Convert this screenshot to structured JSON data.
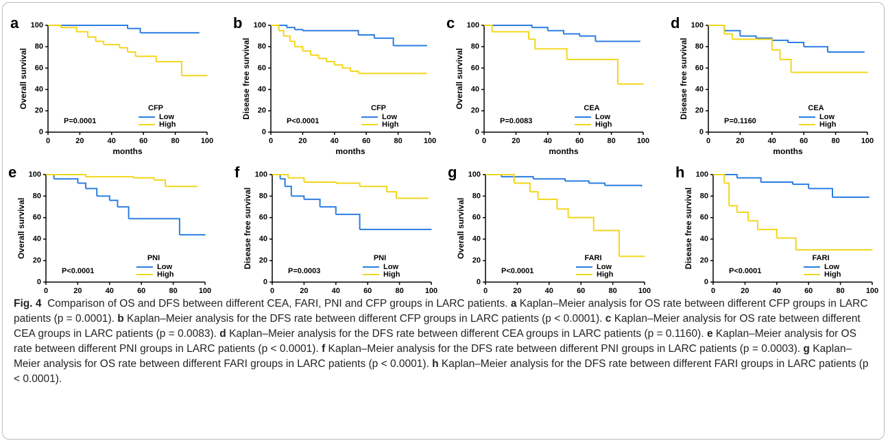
{
  "chart_data": [
    {
      "type": "line",
      "step": true,
      "panel_label": "a",
      "y_label": "Overall survival",
      "x_label": "months",
      "legend_title": "CFP",
      "annotation": "P=0.0001",
      "xlim": [
        0,
        100
      ],
      "xticks": [
        0,
        20,
        40,
        60,
        80,
        100
      ],
      "ylim": [
        0,
        100
      ],
      "yticks": [
        0,
        20,
        40,
        60,
        80,
        100
      ],
      "series": [
        {
          "name": "Low",
          "color": "#2a7de1",
          "x": [
            0,
            50,
            58,
            95
          ],
          "values": [
            100,
            97,
            93,
            93
          ]
        },
        {
          "name": "High",
          "color": "#f2d61c",
          "x": [
            0,
            8,
            18,
            25,
            30,
            35,
            45,
            50,
            55,
            68,
            84,
            100
          ],
          "values": [
            100,
            98,
            94,
            89,
            85,
            82,
            79,
            75,
            71,
            66,
            53,
            53
          ]
        }
      ]
    },
    {
      "type": "line",
      "step": true,
      "panel_label": "b",
      "y_label": "Disease free survival",
      "x_label": "months",
      "legend_title": "CFP",
      "annotation": "P<0.0001",
      "xlim": [
        0,
        100
      ],
      "xticks": [
        0,
        20,
        40,
        60,
        80,
        100
      ],
      "ylim": [
        0,
        100
      ],
      "yticks": [
        0,
        20,
        40,
        60,
        80,
        100
      ],
      "series": [
        {
          "name": "Low",
          "color": "#2a7de1",
          "x": [
            0,
            10,
            15,
            20,
            55,
            65,
            77,
            98
          ],
          "values": [
            100,
            98,
            96,
            95,
            91,
            88,
            81,
            81
          ]
        },
        {
          "name": "High",
          "color": "#f2d61c",
          "x": [
            0,
            5,
            8,
            12,
            15,
            20,
            25,
            30,
            35,
            40,
            45,
            50,
            55,
            98
          ],
          "values": [
            100,
            95,
            90,
            85,
            80,
            76,
            72,
            69,
            66,
            63,
            60,
            57,
            55,
            55
          ]
        }
      ]
    },
    {
      "type": "line",
      "step": true,
      "panel_label": "c",
      "y_label": "Overall survival",
      "x_label": "months",
      "legend_title": "CEA",
      "annotation": "P=0.0083",
      "xlim": [
        0,
        100
      ],
      "xticks": [
        0,
        20,
        40,
        60,
        80,
        100
      ],
      "ylim": [
        0,
        100
      ],
      "yticks": [
        0,
        20,
        40,
        60,
        80,
        100
      ],
      "series": [
        {
          "name": "Low",
          "color": "#2a7de1",
          "x": [
            0,
            30,
            40,
            50,
            60,
            70,
            98
          ],
          "values": [
            100,
            98,
            95,
            92,
            90,
            85,
            85
          ]
        },
        {
          "name": "High",
          "color": "#f2d61c",
          "x": [
            0,
            5,
            28,
            32,
            52,
            84,
            100
          ],
          "values": [
            100,
            94,
            87,
            78,
            68,
            45,
            45
          ]
        }
      ]
    },
    {
      "type": "line",
      "step": true,
      "panel_label": "d",
      "y_label": "Disease free survival",
      "x_label": "months",
      "legend_title": "CEA",
      "annotation": "P=0.1160",
      "xlim": [
        0,
        100
      ],
      "xticks": [
        0,
        20,
        40,
        60,
        80,
        100
      ],
      "ylim": [
        0,
        100
      ],
      "yticks": [
        0,
        20,
        40,
        60,
        80,
        100
      ],
      "series": [
        {
          "name": "Low",
          "color": "#2a7de1",
          "x": [
            0,
            10,
            20,
            30,
            40,
            50,
            60,
            75,
            98
          ],
          "values": [
            100,
            95,
            90,
            88,
            86,
            84,
            80,
            75,
            75
          ]
        },
        {
          "name": "High",
          "color": "#f2d61c",
          "x": [
            0,
            10,
            15,
            40,
            45,
            52,
            100
          ],
          "values": [
            100,
            92,
            87,
            77,
            68,
            56,
            56
          ]
        }
      ]
    },
    {
      "type": "line",
      "step": true,
      "panel_label": "e",
      "y_label": "Overall survival",
      "x_label": "months",
      "legend_title": "PNI",
      "annotation": "P<0.0001",
      "xlim": [
        0,
        100
      ],
      "xticks": [
        0,
        20,
        40,
        60,
        80,
        100
      ],
      "ylim": [
        0,
        100
      ],
      "yticks": [
        0,
        20,
        40,
        60,
        80,
        100
      ],
      "series": [
        {
          "name": "Low",
          "color": "#2a7de1",
          "x": [
            0,
            5,
            20,
            25,
            32,
            40,
            45,
            52,
            84,
            100
          ],
          "values": [
            100,
            96,
            92,
            87,
            80,
            76,
            70,
            59,
            44,
            44
          ]
        },
        {
          "name": "High",
          "color": "#f2d61c",
          "x": [
            0,
            25,
            55,
            68,
            75,
            95
          ],
          "values": [
            100,
            98,
            97,
            95,
            89,
            89
          ]
        }
      ]
    },
    {
      "type": "line",
      "step": true,
      "panel_label": "f",
      "y_label": "Disease free survival",
      "x_label": "months",
      "legend_title": "PNI",
      "annotation": "P=0.0003",
      "xlim": [
        0,
        100
      ],
      "xticks": [
        0,
        20,
        40,
        60,
        80,
        100
      ],
      "ylim": [
        0,
        100
      ],
      "yticks": [
        0,
        20,
        40,
        60,
        80,
        100
      ],
      "series": [
        {
          "name": "Low",
          "color": "#2a7de1",
          "x": [
            0,
            5,
            8,
            12,
            20,
            30,
            40,
            55,
            100
          ],
          "values": [
            100,
            96,
            89,
            80,
            77,
            70,
            63,
            49,
            49
          ]
        },
        {
          "name": "High",
          "color": "#f2d61c",
          "x": [
            0,
            10,
            20,
            40,
            55,
            72,
            78,
            98
          ],
          "values": [
            100,
            97,
            93,
            92,
            89,
            84,
            78,
            78
          ]
        }
      ]
    },
    {
      "type": "line",
      "step": true,
      "panel_label": "g",
      "y_label": "Overall survival",
      "x_label": "months",
      "legend_title": "FARI",
      "annotation": "P<0.0001",
      "xlim": [
        0,
        100
      ],
      "xticks": [
        0,
        20,
        40,
        60,
        80,
        100
      ],
      "ylim": [
        0,
        100
      ],
      "yticks": [
        0,
        20,
        40,
        60,
        80,
        100
      ],
      "series": [
        {
          "name": "Low",
          "color": "#2a7de1",
          "x": [
            0,
            10,
            30,
            50,
            65,
            75,
            98
          ],
          "values": [
            100,
            98,
            96,
            94,
            92,
            90,
            89
          ]
        },
        {
          "name": "High",
          "color": "#f2d61c",
          "x": [
            0,
            18,
            28,
            33,
            45,
            52,
            68,
            84,
            100
          ],
          "values": [
            100,
            92,
            84,
            77,
            68,
            60,
            48,
            24,
            24
          ]
        }
      ]
    },
    {
      "type": "line",
      "step": true,
      "panel_label": "h",
      "y_label": "Disease free survival",
      "x_label": "months",
      "legend_title": "FARI",
      "annotation": "P<0.0001",
      "xlim": [
        0,
        100
      ],
      "xticks": [
        0,
        20,
        40,
        60,
        80,
        100
      ],
      "ylim": [
        0,
        100
      ],
      "yticks": [
        0,
        20,
        40,
        60,
        80,
        100
      ],
      "series": [
        {
          "name": "Low",
          "color": "#2a7de1",
          "x": [
            0,
            15,
            30,
            50,
            60,
            75,
            98
          ],
          "values": [
            100,
            97,
            93,
            91,
            87,
            79,
            79
          ]
        },
        {
          "name": "High",
          "color": "#f2d61c",
          "x": [
            0,
            7,
            10,
            15,
            22,
            28,
            40,
            52,
            100
          ],
          "values": [
            100,
            92,
            71,
            65,
            57,
            49,
            41,
            30,
            30
          ]
        }
      ]
    }
  ],
  "caption": {
    "figure_label": "Fig. 4",
    "text": "Comparison of OS and DFS between different CEA, FARI, PNI and CFP groups in LARC patients.",
    "parts": [
      {
        "letter": "a",
        "text": "Kaplan–Meier analysis for OS rate between different CFP groups in LARC patients (p = 0.0001)."
      },
      {
        "letter": "b",
        "text": "Kaplan–Meier analysis for the DFS rate between different CFP groups in LARC patients (p < 0.0001)."
      },
      {
        "letter": "c",
        "text": "Kaplan–Meier analysis for OS rate between different CEA groups in LARC patients (p = 0.0083)."
      },
      {
        "letter": "d",
        "text": "Kaplan–Meier analysis for the DFS rate between different CEA groups in LARC patients (p = 0.1160)."
      },
      {
        "letter": "e",
        "text": "Kaplan–Meier analysis for OS rate between different PNI groups in LARC patients (p < 0.0001)."
      },
      {
        "letter": "f",
        "text": "Kaplan–Meier analysis for the DFS rate between different PNI groups in LARC patients (p = 0.0003)."
      },
      {
        "letter": "g",
        "text": "Kaplan–Meier analysis for OS rate between different FARI groups in LARC patients (p < 0.0001)."
      },
      {
        "letter": "h",
        "text": "Kaplan–Meier analysis for the DFS rate between different FARI groups in LARC patients (p < 0.0001)."
      }
    ]
  }
}
